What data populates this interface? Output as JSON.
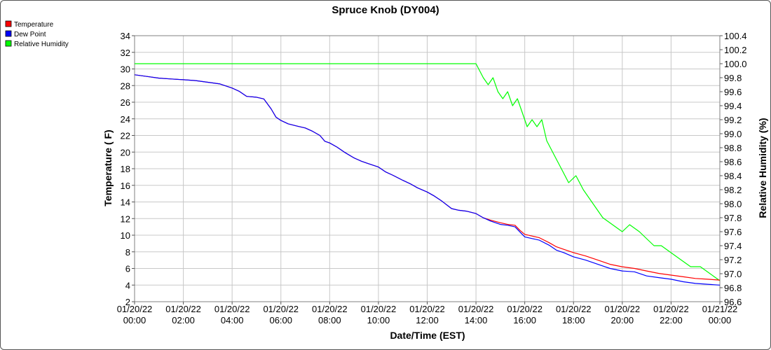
{
  "chart_data": {
    "type": "line",
    "title": "Spruce Knob (DY004)",
    "xlabel": "Date/Time (EST)",
    "ylabel_left": "Temperature ( F)",
    "ylabel_right": "Relative Humidity (%)",
    "x_ticks": [
      {
        "hour": 0,
        "date": "01/20/22",
        "time": "00:00"
      },
      {
        "hour": 2,
        "date": "01/20/22",
        "time": "02:00"
      },
      {
        "hour": 4,
        "date": "01/20/22",
        "time": "04:00"
      },
      {
        "hour": 6,
        "date": "01/20/22",
        "time": "06:00"
      },
      {
        "hour": 8,
        "date": "01/20/22",
        "time": "08:00"
      },
      {
        "hour": 10,
        "date": "01/20/22",
        "time": "10:00"
      },
      {
        "hour": 12,
        "date": "01/20/22",
        "time": "12:00"
      },
      {
        "hour": 14,
        "date": "01/20/22",
        "time": "14:00"
      },
      {
        "hour": 16,
        "date": "01/20/22",
        "time": "16:00"
      },
      {
        "hour": 18,
        "date": "01/20/22",
        "time": "18:00"
      },
      {
        "hour": 20,
        "date": "01/20/22",
        "time": "20:00"
      },
      {
        "hour": 22,
        "date": "01/20/22",
        "time": "22:00"
      },
      {
        "hour": 24,
        "date": "01/21/22",
        "time": "00:00"
      }
    ],
    "xlim": [
      0,
      24
    ],
    "ylim_left": [
      2,
      34
    ],
    "yticks_left": [
      "2",
      "4",
      "6",
      "8",
      "10",
      "12",
      "14",
      "16",
      "18",
      "20",
      "22",
      "24",
      "26",
      "28",
      "30",
      "32",
      "34"
    ],
    "ylim_right": [
      96.6,
      100.4
    ],
    "yticks_right": [
      "96.6",
      "96.8",
      "97.0",
      "97.2",
      "97.4",
      "97.6",
      "97.8",
      "98.0",
      "98.2",
      "98.4",
      "98.6",
      "98.8",
      "99.0",
      "99.2",
      "99.4",
      "99.6",
      "99.8",
      "100.0",
      "100.2",
      "100.4"
    ],
    "grid": true,
    "legend_position": "top-left",
    "series": [
      {
        "name": "Temperature",
        "color": "#ff0000",
        "axis": "left",
        "points": [
          [
            0,
            29.3
          ],
          [
            0.5,
            29.1
          ],
          [
            1,
            28.9
          ],
          [
            1.5,
            28.8
          ],
          [
            2,
            28.7
          ],
          [
            2.5,
            28.6
          ],
          [
            3,
            28.4
          ],
          [
            3.5,
            28.2
          ],
          [
            4,
            27.7
          ],
          [
            4.3,
            27.3
          ],
          [
            4.6,
            26.7
          ],
          [
            5,
            26.6
          ],
          [
            5.3,
            26.4
          ],
          [
            5.6,
            25.2
          ],
          [
            5.8,
            24.2
          ],
          [
            6,
            23.8
          ],
          [
            6.3,
            23.4
          ],
          [
            6.7,
            23.1
          ],
          [
            7,
            22.9
          ],
          [
            7.3,
            22.5
          ],
          [
            7.6,
            22.0
          ],
          [
            7.8,
            21.3
          ],
          [
            8,
            21.1
          ],
          [
            8.3,
            20.6
          ],
          [
            8.6,
            20.0
          ],
          [
            9,
            19.3
          ],
          [
            9.3,
            18.9
          ],
          [
            9.6,
            18.6
          ],
          [
            10,
            18.2
          ],
          [
            10.3,
            17.6
          ],
          [
            10.6,
            17.2
          ],
          [
            11,
            16.6
          ],
          [
            11.3,
            16.2
          ],
          [
            11.6,
            15.7
          ],
          [
            12,
            15.2
          ],
          [
            12.3,
            14.7
          ],
          [
            12.6,
            14.1
          ],
          [
            13,
            13.2
          ],
          [
            13.3,
            13.0
          ],
          [
            13.6,
            12.9
          ],
          [
            14,
            12.6
          ],
          [
            14.3,
            12.1
          ],
          [
            14.6,
            11.8
          ],
          [
            15,
            11.5
          ],
          [
            15.3,
            11.3
          ],
          [
            15.6,
            11.2
          ],
          [
            15.8,
            10.6
          ],
          [
            16,
            10.1
          ],
          [
            16.3,
            9.9
          ],
          [
            16.6,
            9.7
          ],
          [
            17,
            9.1
          ],
          [
            17.3,
            8.6
          ],
          [
            17.6,
            8.3
          ],
          [
            18,
            7.9
          ],
          [
            18.5,
            7.5
          ],
          [
            19,
            7.0
          ],
          [
            19.5,
            6.5
          ],
          [
            20,
            6.2
          ],
          [
            20.5,
            6.0
          ],
          [
            21,
            5.7
          ],
          [
            21.5,
            5.4
          ],
          [
            22,
            5.2
          ],
          [
            22.5,
            5.0
          ],
          [
            23,
            4.8
          ],
          [
            23.5,
            4.7
          ],
          [
            24,
            4.6
          ]
        ]
      },
      {
        "name": "Dew Point",
        "color": "#0000ff",
        "axis": "left",
        "points": [
          [
            0,
            29.3
          ],
          [
            0.5,
            29.1
          ],
          [
            1,
            28.9
          ],
          [
            1.5,
            28.8
          ],
          [
            2,
            28.7
          ],
          [
            2.5,
            28.6
          ],
          [
            3,
            28.4
          ],
          [
            3.5,
            28.2
          ],
          [
            4,
            27.7
          ],
          [
            4.3,
            27.3
          ],
          [
            4.6,
            26.7
          ],
          [
            5,
            26.6
          ],
          [
            5.3,
            26.4
          ],
          [
            5.6,
            25.2
          ],
          [
            5.8,
            24.2
          ],
          [
            6,
            23.8
          ],
          [
            6.3,
            23.4
          ],
          [
            6.7,
            23.1
          ],
          [
            7,
            22.9
          ],
          [
            7.3,
            22.5
          ],
          [
            7.6,
            22.0
          ],
          [
            7.8,
            21.3
          ],
          [
            8,
            21.1
          ],
          [
            8.3,
            20.6
          ],
          [
            8.6,
            20.0
          ],
          [
            9,
            19.3
          ],
          [
            9.3,
            18.9
          ],
          [
            9.6,
            18.6
          ],
          [
            10,
            18.2
          ],
          [
            10.3,
            17.6
          ],
          [
            10.6,
            17.2
          ],
          [
            11,
            16.6
          ],
          [
            11.3,
            16.2
          ],
          [
            11.6,
            15.7
          ],
          [
            12,
            15.2
          ],
          [
            12.3,
            14.7
          ],
          [
            12.6,
            14.1
          ],
          [
            13,
            13.2
          ],
          [
            13.3,
            13.0
          ],
          [
            13.6,
            12.9
          ],
          [
            14,
            12.6
          ],
          [
            14.3,
            12.1
          ],
          [
            14.6,
            11.7
          ],
          [
            15,
            11.3
          ],
          [
            15.3,
            11.2
          ],
          [
            15.6,
            11.0
          ],
          [
            15.8,
            10.4
          ],
          [
            16,
            9.8
          ],
          [
            16.3,
            9.6
          ],
          [
            16.6,
            9.4
          ],
          [
            17,
            8.8
          ],
          [
            17.3,
            8.2
          ],
          [
            17.6,
            7.9
          ],
          [
            18,
            7.4
          ],
          [
            18.5,
            7.0
          ],
          [
            19,
            6.5
          ],
          [
            19.5,
            6.0
          ],
          [
            20,
            5.7
          ],
          [
            20.5,
            5.6
          ],
          [
            21,
            5.1
          ],
          [
            21.5,
            4.9
          ],
          [
            22,
            4.7
          ],
          [
            22.5,
            4.4
          ],
          [
            23,
            4.2
          ],
          [
            23.5,
            4.1
          ],
          [
            24,
            4.0
          ]
        ]
      },
      {
        "name": "Relative Humidity",
        "color": "#00ff00",
        "axis": "right",
        "points": [
          [
            0,
            100.0
          ],
          [
            14,
            100.0
          ],
          [
            14.3,
            99.8
          ],
          [
            14.5,
            99.7
          ],
          [
            14.7,
            99.8
          ],
          [
            14.9,
            99.6
          ],
          [
            15.1,
            99.5
          ],
          [
            15.3,
            99.6
          ],
          [
            15.5,
            99.4
          ],
          [
            15.7,
            99.5
          ],
          [
            15.9,
            99.3
          ],
          [
            16.1,
            99.1
          ],
          [
            16.3,
            99.2
          ],
          [
            16.5,
            99.1
          ],
          [
            16.7,
            99.2
          ],
          [
            16.9,
            98.9
          ],
          [
            17.2,
            98.7
          ],
          [
            17.5,
            98.5
          ],
          [
            17.8,
            98.3
          ],
          [
            18.1,
            98.4
          ],
          [
            18.4,
            98.2
          ],
          [
            18.8,
            98.0
          ],
          [
            19.2,
            97.8
          ],
          [
            19.6,
            97.7
          ],
          [
            20,
            97.6
          ],
          [
            20.3,
            97.7
          ],
          [
            20.7,
            97.6
          ],
          [
            21,
            97.5
          ],
          [
            21.3,
            97.4
          ],
          [
            21.6,
            97.4
          ],
          [
            22,
            97.3
          ],
          [
            22.4,
            97.2
          ],
          [
            22.8,
            97.1
          ],
          [
            23.2,
            97.1
          ],
          [
            23.6,
            97.0
          ],
          [
            24,
            96.9
          ]
        ]
      }
    ]
  }
}
